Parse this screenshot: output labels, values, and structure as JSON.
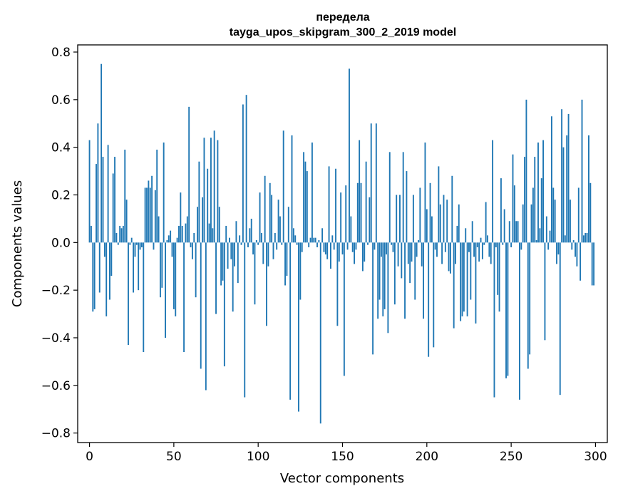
{
  "chart_data": {
    "type": "bar",
    "title": "передела",
    "subtitle": "tayga_upos_skipgram_300_2_2019 model",
    "xlabel": "Vector components",
    "ylabel": "Components values",
    "xlim": [
      -7,
      307
    ],
    "ylim": [
      -0.84,
      0.83
    ],
    "xticks": [
      0,
      50,
      100,
      150,
      200,
      250,
      300
    ],
    "yticks": [
      -0.8,
      -0.6,
      -0.4,
      -0.2,
      0.0,
      0.2,
      0.4,
      0.6,
      0.8
    ],
    "xtick_labels": [
      "0",
      "50",
      "100",
      "150",
      "200",
      "250",
      "300"
    ],
    "ytick_labels": [
      "−0.8",
      "−0.6",
      "−0.4",
      "−0.2",
      "0.0",
      "0.2",
      "0.4",
      "0.6",
      "0.8"
    ],
    "bar_color": "#1f77b4",
    "grid": false,
    "x": [
      0,
      1,
      2,
      3,
      4,
      5,
      6,
      7,
      8,
      9,
      10,
      11,
      12,
      13,
      14,
      15,
      16,
      17,
      18,
      19,
      20,
      21,
      22,
      23,
      24,
      25,
      26,
      27,
      28,
      29,
      30,
      31,
      32,
      33,
      34,
      35,
      36,
      37,
      38,
      39,
      40,
      41,
      42,
      43,
      44,
      45,
      46,
      47,
      48,
      49,
      50,
      51,
      52,
      53,
      54,
      55,
      56,
      57,
      58,
      59,
      60,
      61,
      62,
      63,
      64,
      65,
      66,
      67,
      68,
      69,
      70,
      71,
      72,
      73,
      74,
      75,
      76,
      77,
      78,
      79,
      80,
      81,
      82,
      83,
      84,
      85,
      86,
      87,
      88,
      89,
      90,
      91,
      92,
      93,
      94,
      95,
      96,
      97,
      98,
      99,
      100,
      101,
      102,
      103,
      104,
      105,
      106,
      107,
      108,
      109,
      110,
      111,
      112,
      113,
      114,
      115,
      116,
      117,
      118,
      119,
      120,
      121,
      122,
      123,
      124,
      125,
      126,
      127,
      128,
      129,
      130,
      131,
      132,
      133,
      134,
      135,
      136,
      137,
      138,
      139,
      140,
      141,
      142,
      143,
      144,
      145,
      146,
      147,
      148,
      149,
      150,
      151,
      152,
      153,
      154,
      155,
      156,
      157,
      158,
      159,
      160,
      161,
      162,
      163,
      164,
      165,
      166,
      167,
      168,
      169,
      170,
      171,
      172,
      173,
      174,
      175,
      176,
      177,
      178,
      179,
      180,
      181,
      182,
      183,
      184,
      185,
      186,
      187,
      188,
      189,
      190,
      191,
      192,
      193,
      194,
      195,
      196,
      197,
      198,
      199,
      200,
      201,
      202,
      203,
      204,
      205,
      206,
      207,
      208,
      209,
      210,
      211,
      212,
      213,
      214,
      215,
      216,
      217,
      218,
      219,
      220,
      221,
      222,
      223,
      224,
      225,
      226,
      227,
      228,
      229,
      230,
      231,
      232,
      233,
      234,
      235,
      236,
      237,
      238,
      239,
      240,
      241,
      242,
      243,
      244,
      245,
      246,
      247,
      248,
      249,
      250,
      251,
      252,
      253,
      254,
      255,
      256,
      257,
      258,
      259,
      260,
      261,
      262,
      263,
      264,
      265,
      266,
      267,
      268,
      269,
      270,
      271,
      272,
      273,
      274,
      275,
      276,
      277,
      278,
      279,
      280,
      281,
      282,
      283,
      284,
      285,
      286,
      287,
      288,
      289,
      290,
      291,
      292,
      293,
      294,
      295,
      296,
      297,
      298,
      299
    ],
    "values": [
      0.43,
      0.07,
      -0.29,
      -0.28,
      0.33,
      0.5,
      -0.21,
      0.75,
      0.36,
      -0.06,
      -0.31,
      0.41,
      -0.24,
      -0.14,
      0.29,
      0.36,
      0.04,
      -0.01,
      0.07,
      0.06,
      0.07,
      0.39,
      0.18,
      -0.43,
      -0.01,
      0.02,
      -0.21,
      -0.06,
      -0.01,
      -0.2,
      -0.03,
      -0.02,
      -0.46,
      0.23,
      0.23,
      0.26,
      0.23,
      0.28,
      -0.03,
      0.22,
      0.39,
      0.11,
      -0.23,
      -0.19,
      0.42,
      -0.4,
      0.01,
      0.03,
      0.05,
      -0.06,
      -0.28,
      -0.31,
      0.02,
      0.07,
      0.21,
      0.07,
      -0.46,
      0.08,
      0.11,
      0.57,
      -0.02,
      -0.07,
      0.04,
      -0.23,
      0.15,
      0.34,
      -0.53,
      0.19,
      0.44,
      -0.62,
      0.31,
      0.08,
      0.44,
      0.06,
      0.47,
      -0.3,
      0.43,
      0.15,
      -0.18,
      -0.16,
      -0.52,
      0.07,
      -0.11,
      0.02,
      -0.07,
      -0.29,
      -0.1,
      0.09,
      -0.17,
      0.03,
      -0.01,
      0.58,
      -0.65,
      0.62,
      -0.02,
      0.06,
      0.1,
      -0.05,
      -0.26,
      0.01,
      -0.01,
      0.21,
      0.04,
      -0.09,
      0.28,
      -0.35,
      -0.1,
      0.25,
      0.2,
      -0.07,
      0.04,
      -0.03,
      0.18,
      0.11,
      -0.01,
      0.47,
      -0.18,
      -0.14,
      0.15,
      -0.66,
      0.45,
      0.06,
      0.03,
      -0.01,
      -0.71,
      -0.24,
      -0.04,
      0.38,
      0.34,
      0.3,
      -0.02,
      0.02,
      0.42,
      0.02,
      0.02,
      -0.02,
      0.01,
      -0.76,
      0.06,
      -0.04,
      -0.05,
      -0.07,
      0.32,
      -0.11,
      0.03,
      -0.03,
      0.31,
      -0.35,
      -0.08,
      0.21,
      -0.05,
      -0.56,
      0.24,
      -0.03,
      0.73,
      0.11,
      -0.04,
      -0.09,
      -0.03,
      0.25,
      0.43,
      0.25,
      -0.12,
      -0.08,
      0.34,
      -0.01,
      0.19,
      0.5,
      -0.47,
      -0.03,
      0.5,
      -0.32,
      -0.24,
      -0.06,
      -0.31,
      -0.28,
      -0.05,
      -0.38,
      0.38,
      -0.01,
      -0.04,
      -0.26,
      0.2,
      -0.1,
      0.2,
      -0.15,
      0.38,
      -0.32,
      0.3,
      -0.09,
      -0.17,
      -0.08,
      0.2,
      -0.24,
      -0.06,
      0.01,
      0.23,
      -0.1,
      -0.32,
      0.42,
      0.14,
      -0.48,
      0.25,
      0.11,
      -0.44,
      -0.03,
      -0.06,
      0.32,
      0.16,
      -0.09,
      0.2,
      -0.04,
      0.18,
      -0.12,
      -0.13,
      0.28,
      -0.36,
      -0.09,
      0.07,
      0.16,
      -0.33,
      -0.31,
      -0.29,
      0.06,
      -0.31,
      -0.04,
      -0.24,
      0.09,
      -0.06,
      -0.34,
      -0.02,
      -0.08,
      0.02,
      -0.07,
      -0.01,
      0.17,
      0.03,
      -0.06,
      -0.09,
      0.43,
      -0.65,
      -0.02,
      -0.22,
      -0.29,
      0.27,
      -0.01,
      0.14,
      -0.57,
      -0.56,
      0.09,
      -0.02,
      0.37,
      0.24,
      0.09,
      0.09,
      -0.66,
      -0.03,
      0.16,
      0.36,
      0.6,
      -0.53,
      -0.47,
      0.16,
      0.23,
      0.36,
      0.01,
      0.42,
      0.06,
      0.27,
      0.43,
      -0.41,
      0.11,
      -0.03,
      0.05,
      0.53,
      0.23,
      0.18,
      -0.09,
      -0.05,
      -0.64,
      0.56,
      0.4,
      0.03,
      0.45,
      0.54,
      0.18,
      -0.03,
      0.01,
      -0.06,
      -0.1,
      0.23,
      -0.16,
      0.6,
      0.03,
      0.04,
      0.04,
      0.45,
      0.25,
      -0.18,
      -0.18
    ]
  }
}
